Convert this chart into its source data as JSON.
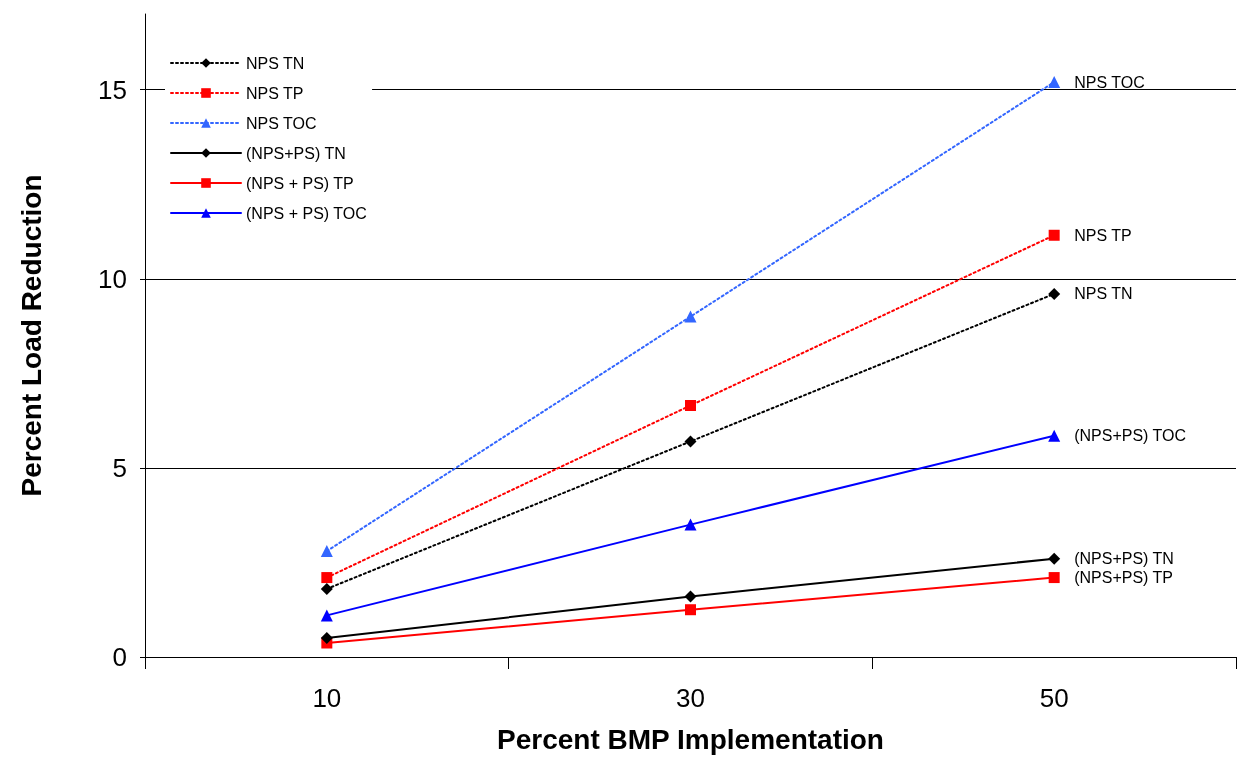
{
  "chart_data": {
    "type": "line",
    "xlabel": "Percent BMP Implementation",
    "ylabel": "Percent Load Reduction",
    "categories": [
      "10",
      "30",
      "50"
    ],
    "series": [
      {
        "name": "NPS TN",
        "color": "#000000",
        "values": [
          1.8,
          5.7,
          9.6
        ],
        "marker": "diamond",
        "line_style": "dotted"
      },
      {
        "name": "NPS TP",
        "color": "#ff0000",
        "values": [
          2.1,
          6.65,
          11.15
        ],
        "marker": "square",
        "line_style": "dotted"
      },
      {
        "name": "NPS TOC",
        "color": "#3366ff",
        "values": [
          2.8,
          9.0,
          15.2
        ],
        "marker": "triangle",
        "line_style": "dotted"
      },
      {
        "name": "(NPS+PS) TN",
        "color": "#000000",
        "values": [
          0.5,
          1.6,
          2.6
        ],
        "marker": "diamond",
        "line_style": "solid"
      },
      {
        "name": "(NPS + PS) TP",
        "color": "#ff0000",
        "values": [
          0.37,
          1.25,
          2.1
        ],
        "marker": "square",
        "line_style": "solid"
      },
      {
        "name": "(NPS + PS) TOC",
        "color": "#0000ff",
        "values": [
          1.1,
          3.5,
          5.85
        ],
        "marker": "triangle",
        "line_style": "solid"
      }
    ],
    "ylim": [
      0,
      17
    ],
    "yticks": [
      0,
      5,
      10,
      15
    ],
    "grid": "y",
    "legend": "top left",
    "annotations": [
      {
        "text": "NPS TOC",
        "x": "50",
        "y": 15.2
      },
      {
        "text": "NPS TP",
        "x": "50",
        "y": 11.15
      },
      {
        "text": "NPS TN",
        "x": "50",
        "y": 9.6
      },
      {
        "text": "(NPS+PS) TOC",
        "x": "50",
        "y": 5.85
      },
      {
        "text": "(NPS+PS) TN",
        "x": "50",
        "y": 2.6
      },
      {
        "text": "(NPS+PS) TP",
        "x": "50",
        "y": 2.1
      }
    ]
  }
}
